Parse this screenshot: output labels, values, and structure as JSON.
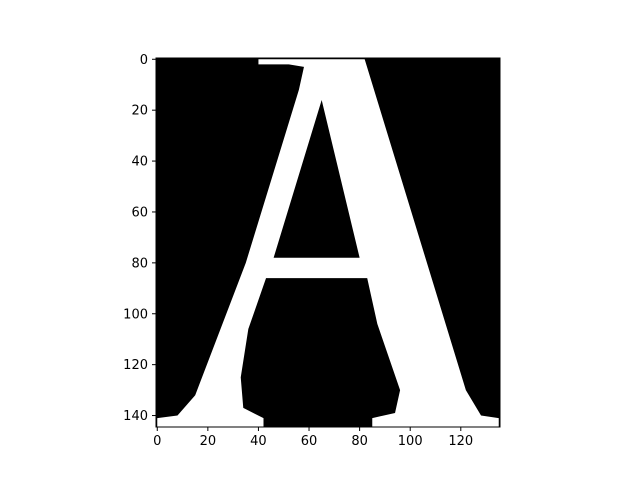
{
  "chart_data": {
    "type": "heatmap",
    "description_colormap": "binary",
    "colors": {
      "background": "#000000",
      "glyph": "#ffffff",
      "axis": "#000000"
    },
    "image_shape": {
      "rows": 145,
      "cols": 136
    },
    "xlim": [
      -0.5,
      135.5
    ],
    "ylim": [
      144.5,
      -0.5
    ],
    "x_ticks": [
      0,
      20,
      40,
      60,
      80,
      100,
      120
    ],
    "y_ticks": [
      0,
      20,
      40,
      60,
      80,
      100,
      120,
      140
    ],
    "x_tick_labels": [
      "0",
      "20",
      "40",
      "60",
      "80",
      "100",
      "120"
    ],
    "y_tick_labels": [
      "0",
      "20",
      "40",
      "60",
      "80",
      "100",
      "120",
      "140"
    ],
    "glyph": "A",
    "glyph_outline": [
      [
        40,
        0
      ],
      [
        82,
        0
      ],
      [
        122,
        130
      ],
      [
        128,
        140
      ],
      [
        135,
        141
      ],
      [
        135,
        145
      ],
      [
        85,
        145
      ],
      [
        85,
        141
      ],
      [
        94,
        139
      ],
      [
        96,
        130
      ],
      [
        87,
        104
      ],
      [
        83,
        86
      ],
      [
        43,
        86
      ],
      [
        36,
        106
      ],
      [
        33,
        125
      ],
      [
        34,
        137
      ],
      [
        42,
        141
      ],
      [
        42,
        145
      ],
      [
        0,
        145
      ],
      [
        0,
        141
      ],
      [
        8,
        140
      ],
      [
        15,
        132
      ],
      [
        35,
        80
      ],
      [
        56,
        12
      ],
      [
        58,
        3
      ],
      [
        52,
        2
      ],
      [
        40,
        2
      ]
    ],
    "glyph_counter": [
      [
        65,
        16
      ],
      [
        80,
        78
      ],
      [
        46,
        78
      ]
    ],
    "title": "",
    "xlabel": "",
    "ylabel": ""
  }
}
